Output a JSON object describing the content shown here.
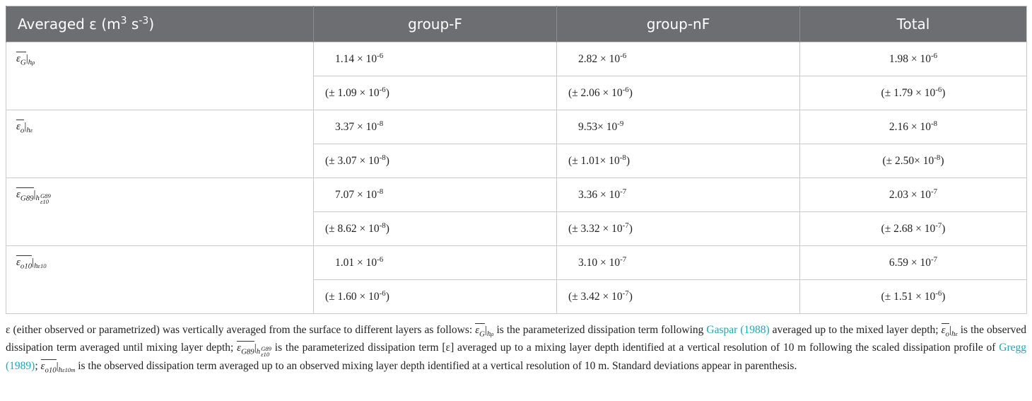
{
  "table": {
    "header": [
      {
        "parts": [
          "Averaged ε (m",
          "3",
          " s",
          "-3",
          ")"
        ]
      },
      {
        "parts": [
          "group-F"
        ]
      },
      {
        "parts": [
          "group-nF"
        ]
      },
      {
        "parts": [
          "Total"
        ]
      }
    ],
    "rows": [
      {
        "label": {
          "sym": "ε",
          "sym_sub": "G",
          "pipe": "|",
          "at": "h",
          "at_sub": "ρ"
        },
        "values": [
          {
            "text": "1.14 × 10",
            "sup": "-6"
          },
          {
            "text": "2.82 × 10",
            "sup": "-6"
          },
          {
            "text": "1.98 × 10",
            "sup": "-6"
          }
        ],
        "errors": [
          {
            "text": "(± 1.09 × 10",
            "sup": "-6",
            "after": ")"
          },
          {
            "text": "(± 2.06 × 10",
            "sup": "-6",
            "after": ")"
          },
          {
            "text": "(± 1.79 × 10",
            "sup": "-6",
            "after": ")"
          }
        ]
      },
      {
        "label": {
          "sym": "ε",
          "sym_sub": "o",
          "pipe": "|",
          "at": "h",
          "at_sub": "ε"
        },
        "values": [
          {
            "text": "3.37 × 10",
            "sup": "-8"
          },
          {
            "text": "9.53× 10",
            "sup": "-9"
          },
          {
            "text": "2.16 × 10",
            "sup": "-8"
          }
        ],
        "errors": [
          {
            "text": "(± 3.07 × 10",
            "sup": "-8",
            "after": ")"
          },
          {
            "text": "(± 1.01× 10",
            "sup": "-8",
            "after": ")"
          },
          {
            "text": "(± 2.50× 10",
            "sup": "-8",
            "after": ")"
          }
        ]
      },
      {
        "label": {
          "sym": "ε",
          "sym_sub": "G89",
          "pipe": "|",
          "at": "h",
          "at_sub": "ε10",
          "at_sup": "G89"
        },
        "values": [
          {
            "text": "7.07 × 10",
            "sup": "-8"
          },
          {
            "text": "3.36 × 10",
            "sup": "-7"
          },
          {
            "text": "2.03 × 10",
            "sup": "-7"
          }
        ],
        "errors": [
          {
            "text": "(± 8.62 × 10",
            "sup": "-8",
            "after": ")"
          },
          {
            "text": "(± 3.32 × 10",
            "sup": "-7",
            "after": ")"
          },
          {
            "text": "(± 2.68 × 10",
            "sup": "-7",
            "after": ")"
          }
        ]
      },
      {
        "label": {
          "sym": "ε",
          "sym_sub": "o10",
          "pipe": "|",
          "at": "h",
          "at_sub": "ε10"
        },
        "values": [
          {
            "text": "1.01 × 10",
            "sup": "-6"
          },
          {
            "text": "3.10 × 10",
            "sup": "-7"
          },
          {
            "text": "6.59 × 10",
            "sup": "-7"
          }
        ],
        "errors": [
          {
            "text": "(± 1.60 × 10",
            "sup": "-6",
            "after": ")"
          },
          {
            "text": "(± 3.42 × 10",
            "sup": "-7",
            "after": ")"
          },
          {
            "text": "(± 1.51 × 10",
            "sup": "-6",
            "after": ")"
          }
        ]
      }
    ]
  },
  "note": [
    {
      "text": "ε (either observed or parametrized) was vertically averaged from the surface to different layers as follows: "
    },
    {
      "math": {
        "sym": "ε",
        "sym_sub": "G",
        "pipe": "|",
        "at": "h",
        "at_sub": "ρ"
      }
    },
    {
      "text": " is the parameterized dissipation term following "
    },
    {
      "link": "Gaspar (1988)"
    },
    {
      "text": " averaged up to the mixed layer depth; "
    },
    {
      "math": {
        "sym": "ε",
        "sym_sub": "o",
        "pipe": "|",
        "at": "h",
        "at_sub": "ε"
      }
    },
    {
      "text": " is the observed dissipation term averaged until mixing layer depth; "
    },
    {
      "math": {
        "sym": "ε",
        "sym_sub": "G89",
        "pipe": "|",
        "at": "h",
        "at_sub": "ε10",
        "at_sup": "G89"
      }
    },
    {
      "text": " is the parameterized dissipation term [ε] averaged up to a mixing layer depth identified at a vertical resolution of 10 m following the scaled dissipation profile of "
    },
    {
      "link": "Gregg (1989)"
    },
    {
      "text": "; "
    },
    {
      "math": {
        "sym": "ε",
        "sym_sub": "o10",
        "pipe": "|",
        "at": "h",
        "at_sub": "ε10m"
      }
    },
    {
      "text": " is the observed dissipation term averaged up to an observed mixing layer depth identified at a vertical resolution of 10 m. Standard deviations appear in parenthesis."
    }
  ]
}
